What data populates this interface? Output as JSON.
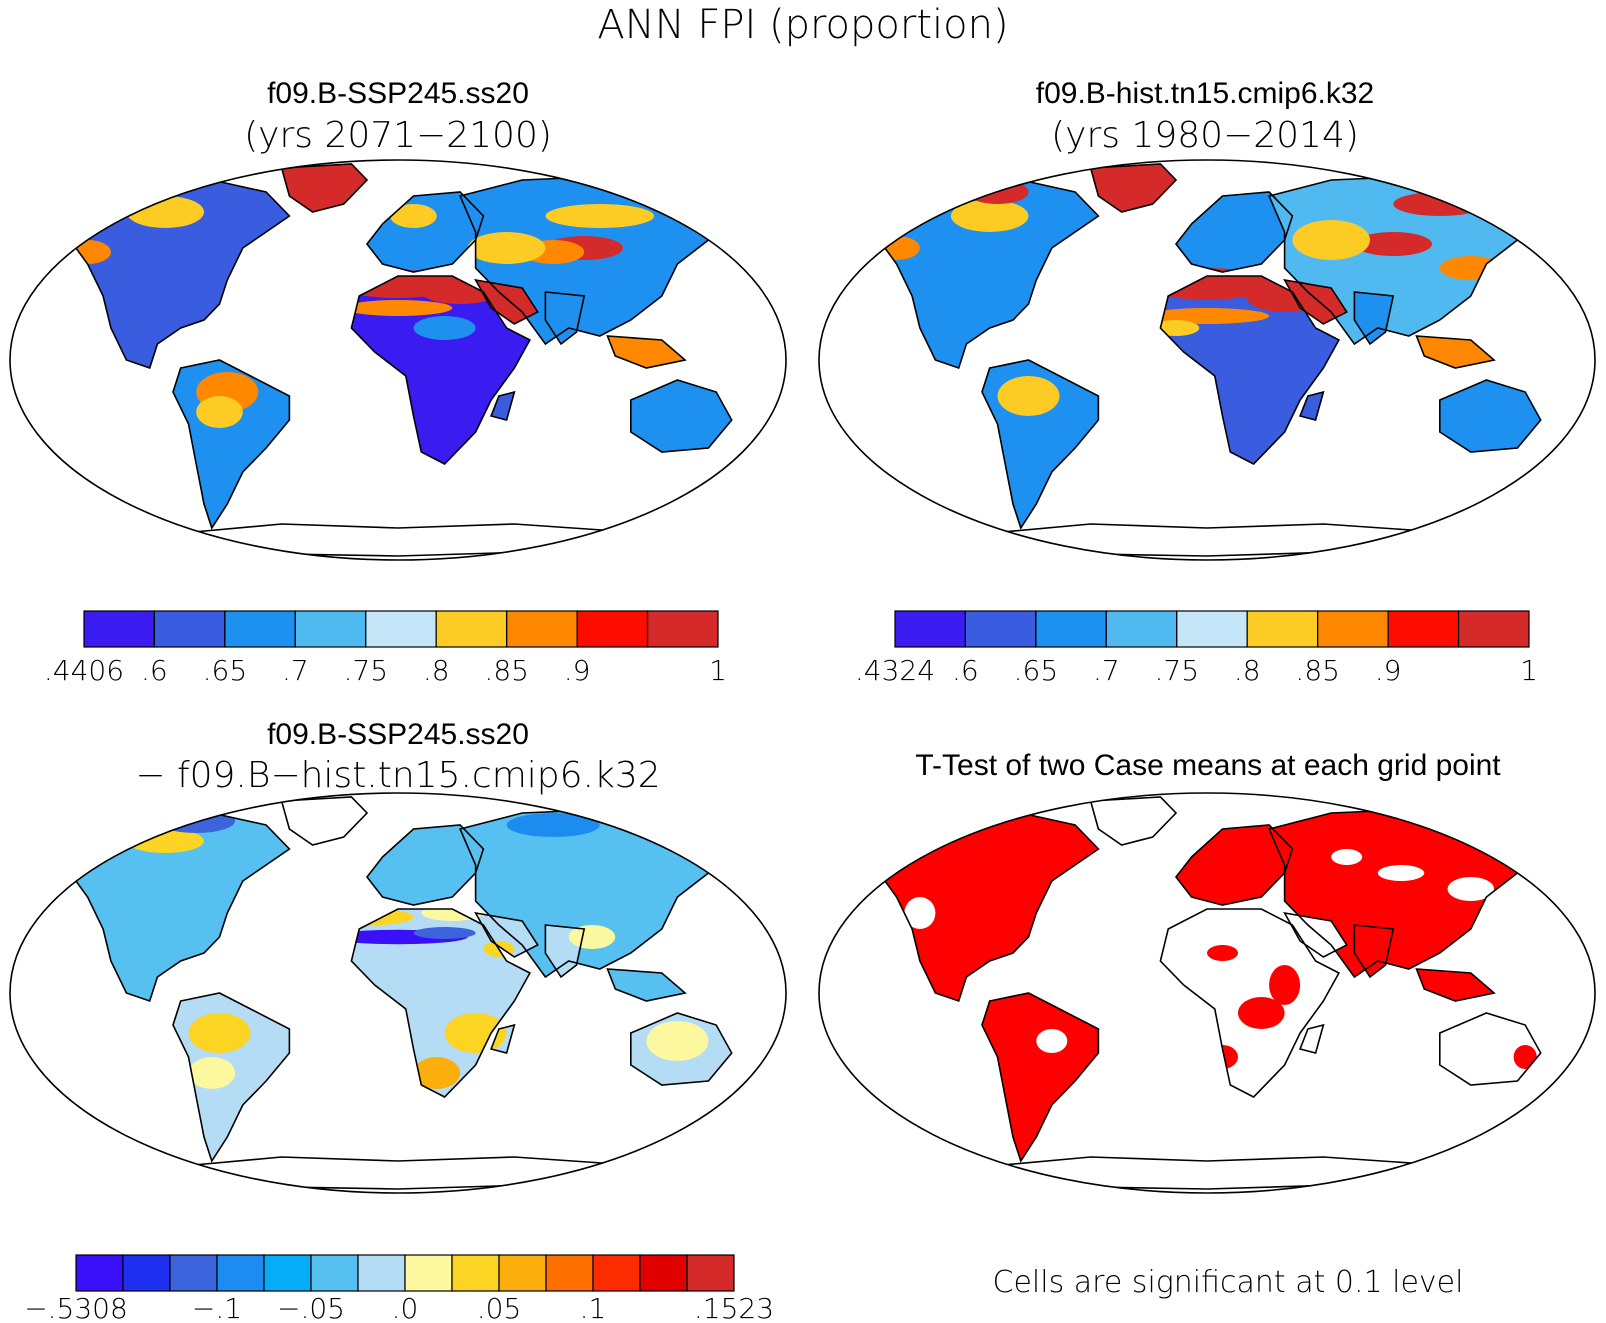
{
  "figure": {
    "title": "ANN FPI (proportion)"
  },
  "colors": {
    "ocean": "#ffffff",
    "coast": "#000000",
    "frame": "#000000",
    "signif": "#ff0000"
  },
  "panels": [
    {
      "id": "ssp245",
      "title_line1": "f09.B-SSP245.ss20",
      "title_line2": "(yrs 2071−2100)",
      "kind": "abs"
    },
    {
      "id": "hist",
      "title_line1": "f09.B-hist.tn15.cmip6.k32",
      "title_line2": "(yrs 1980−2014)",
      "kind": "abs"
    },
    {
      "id": "diff",
      "title_line1": "f09.B-SSP245.ss20",
      "title_line2": "− f09.B−hist.tn15.cmip6.k32",
      "kind": "diff"
    },
    {
      "id": "ttest",
      "title_line1": "T-Test of two Case means at each grid point",
      "title_line2": "",
      "kind": "ttest"
    }
  ],
  "colorbars": {
    "abs_left": {
      "colors": [
        "#3a1bf0",
        "#3a5de0",
        "#1d90f0",
        "#50baf0",
        "#c4e6f8",
        "#fccc24",
        "#ff8800",
        "#ff0c00",
        "#d42a2a"
      ],
      "labels": [
        ".4406",
        ".6",
        ".65",
        ".7",
        ".75",
        ".8",
        ".85",
        ".9",
        "1"
      ],
      "label_positions_at_edges": [
        0,
        1,
        2,
        3,
        4,
        5,
        6,
        7,
        9
      ]
    },
    "abs_right": {
      "colors": [
        "#3a1bf0",
        "#3a5de0",
        "#1d90f0",
        "#50baf0",
        "#c4e6f8",
        "#fccc24",
        "#ff8800",
        "#ff0c00",
        "#d42a2a"
      ],
      "labels": [
        ".4324",
        ".6",
        ".65",
        ".7",
        ".75",
        ".8",
        ".85",
        ".9",
        "1"
      ],
      "label_positions_at_edges": [
        0,
        1,
        2,
        3,
        4,
        5,
        6,
        7,
        9
      ]
    },
    "diff": {
      "colors": [
        "#3a10f8",
        "#2030f0",
        "#3c64dc",
        "#1d8cf0",
        "#06acf8",
        "#56c0f0",
        "#b4dcf4",
        "#fcf8a0",
        "#fcd424",
        "#fcae0c",
        "#fc7000",
        "#fc2c00",
        "#e00000",
        "#d42a2a"
      ],
      "labels": [
        "−.5308",
        "−.1",
        "−.05",
        ".0",
        ".05",
        ".1",
        ".1523"
      ],
      "label_positions_at_edges": [
        0,
        3,
        5,
        7,
        9,
        11,
        14
      ]
    }
  },
  "ttest_note": "Cells are significant at 0.1 level"
}
